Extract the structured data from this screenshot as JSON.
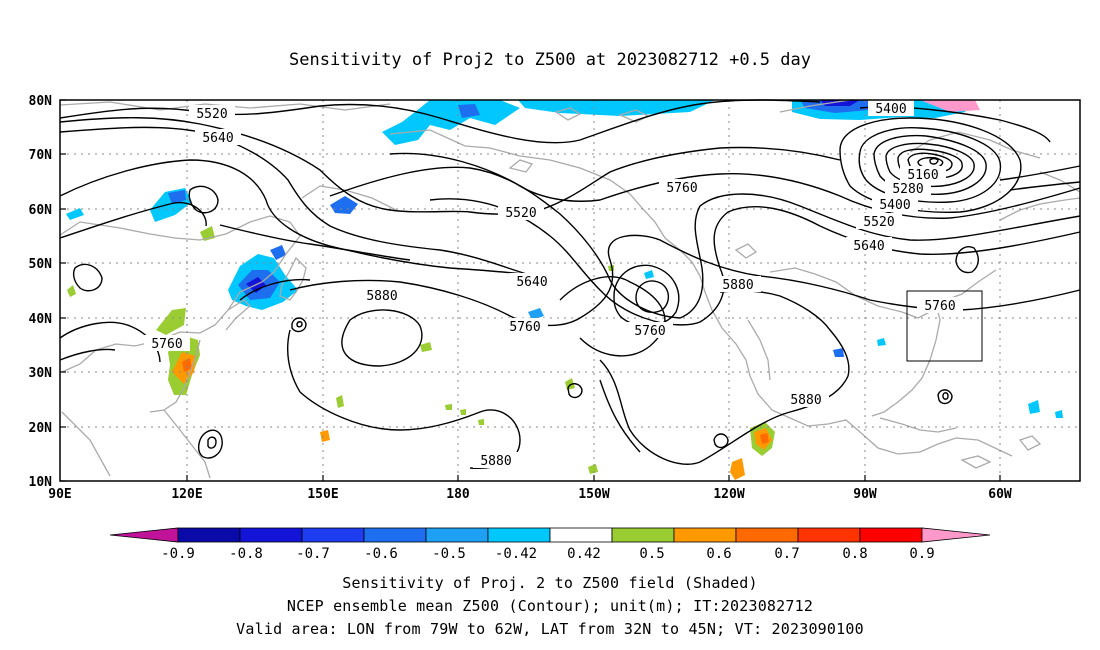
{
  "title": "Sensitivity of Proj2 to Z500 at 2023082712 +0.5 day",
  "lat_labels": [
    "80N",
    "70N",
    "60N",
    "50N",
    "40N",
    "30N",
    "20N",
    "10N"
  ],
  "lon_labels": [
    "90E",
    "120E",
    "150E",
    "180",
    "150W",
    "120W",
    "90W",
    "60W"
  ],
  "colorbar": {
    "labels": [
      "-0.9",
      "-0.8",
      "-0.7",
      "-0.6",
      "-0.5",
      "-0.42",
      "0.42",
      "0.5",
      "0.6",
      "0.7",
      "0.8",
      "0.9"
    ],
    "colors": {
      "lower_arrow": "#c0139a",
      "bins": [
        "#0a0aa8",
        "#1414d8",
        "#1e3cf0",
        "#1e6ef0",
        "#1ea0f5",
        "#00c8ff",
        "#ffffff",
        "#9acd32",
        "#ff9900",
        "#ff6a00",
        "#ff3300",
        "#ff0000"
      ],
      "upper_arrow": "#ff99cc"
    }
  },
  "contour_labels": {
    "c5520a": "5520",
    "c5640a": "5640",
    "c5400": "5400",
    "c5760a": "5760",
    "c5520b": "5520",
    "c5160": "5160",
    "c5280": "5280",
    "c5400b": "5400",
    "c5520c": "5520",
    "c5640b": "5640",
    "c5640c": "5640",
    "c5880a": "5880",
    "c5760b": "5760",
    "c5760c": "5760",
    "c5880b": "5880",
    "c5760d": "5760",
    "c5880c": "5880",
    "c5880d": "5880"
  },
  "footer": {
    "line1": "Sensitivity of Proj. 2 to Z500 field (Shaded)",
    "line2": "NCEP ensemble mean Z500 (Contour); unit(m); IT:2023082712",
    "line3": "Valid area: LON from 79W to 62W, LAT from 32N to 45N; VT: 2023090100"
  }
}
